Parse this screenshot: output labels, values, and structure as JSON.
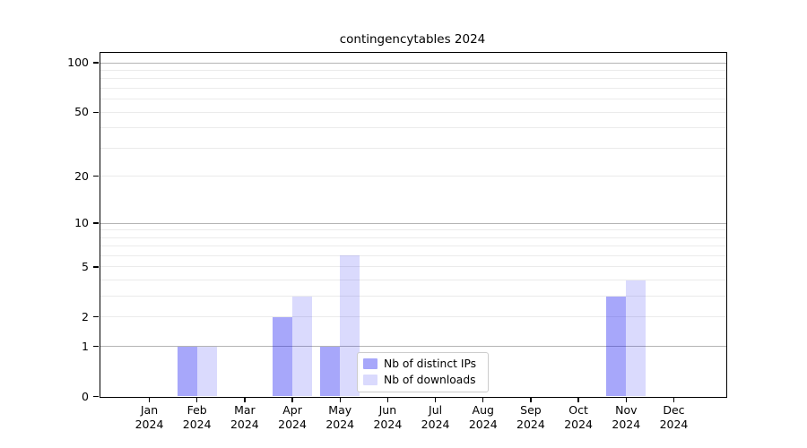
{
  "title": "contingencytables 2024",
  "chart_data": {
    "type": "bar",
    "title": "contingencytables 2024",
    "scale": "log1p",
    "grid": "both",
    "legend_position": "lower right inside plot",
    "x_tick_months": [
      "Jan",
      "Feb",
      "Mar",
      "Apr",
      "May",
      "Jun",
      "Jul",
      "Aug",
      "Sep",
      "Oct",
      "Nov",
      "Dec"
    ],
    "x_tick_year": "2024",
    "series": [
      {
        "name": "Nb of distinct IPs",
        "values": [
          0,
          1,
          0,
          2,
          1,
          0,
          0,
          0,
          0,
          0,
          3,
          0
        ]
      },
      {
        "name": "Nb of downloads",
        "values": [
          0,
          1,
          0,
          3,
          6,
          0,
          0,
          0,
          0,
          0,
          4,
          0
        ]
      }
    ],
    "y_ticks": [
      0,
      1,
      2,
      5,
      10,
      20,
      50,
      100
    ],
    "y_grid_major": [
      1,
      10,
      100
    ],
    "y_grid_minor": [
      2,
      3,
      4,
      5,
      6,
      7,
      8,
      9,
      20,
      30,
      40,
      50,
      60,
      70,
      80,
      90
    ],
    "ylim": [
      0,
      116
    ]
  },
  "legend": {
    "items": [
      {
        "label": "Nb of distinct IPs"
      },
      {
        "label": "Nb of downloads"
      }
    ]
  },
  "colors": {
    "bar_distinct_ips": "rgba(10, 10, 240, 0.36)",
    "bar_downloads": "rgba(10, 10, 240, 0.15)",
    "grid_major": "#b4b4b4",
    "grid_minor": "#ebebeb",
    "axis": "#000000"
  }
}
